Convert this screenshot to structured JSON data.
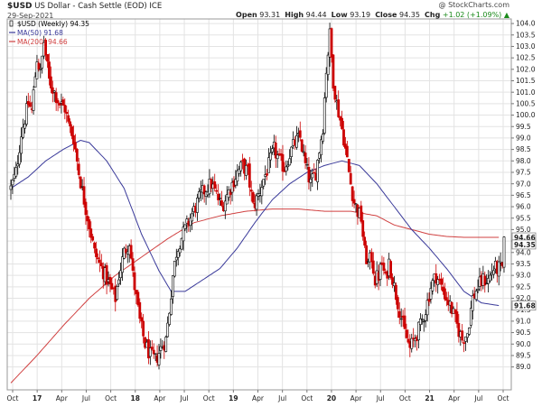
{
  "header": {
    "symbol": "$USD",
    "name": "US Dollar - Cash Settle (EOD) ICE",
    "date": "29-Sep-2021",
    "watermark": "@ StockCharts.com",
    "open_label": "Open",
    "open": "93.31",
    "high_label": "High",
    "high": "94.44",
    "low_label": "Low",
    "low": "93.19",
    "close_label": "Close",
    "close": "94.35",
    "chg_label": "Chg",
    "chg": "+1.02 (+1.09%)",
    "chg_arrow": "▲"
  },
  "colors": {
    "up": "#000000",
    "down": "#cc0000",
    "ma50": "#3a3a9a",
    "ma200": "#d04040",
    "grid": "#e3e3e3",
    "price_tag": "#000000"
  },
  "chart_data": {
    "type": "candlestick",
    "x_tick_labels": [
      "Oct",
      "17",
      "Apr",
      "Jul",
      "Oct",
      "18",
      "Apr",
      "Jul",
      "Oct",
      "19",
      "Apr",
      "Jul",
      "Oct",
      "20",
      "Apr",
      "Jul",
      "Oct",
      "21",
      "Apr",
      "Jul",
      "Oct"
    ],
    "ylim": [
      88.0,
      104.2
    ],
    "y_ticks": [
      "89.0",
      "89.5",
      "90.0",
      "90.5",
      "91.0",
      "91.5",
      "92.0",
      "92.5",
      "93.0",
      "93.5",
      "94.0",
      "94.5",
      "95.0",
      "95.5",
      "96.0",
      "96.5",
      "97.0",
      "97.5",
      "98.0",
      "98.5",
      "99.0",
      "99.5",
      "100.0",
      "100.5",
      "101.0",
      "101.5",
      "102.0",
      "102.5",
      "103.0",
      "103.5",
      "104.0"
    ],
    "legend": [
      {
        "label": "$USD (Weekly) 94.35",
        "key": "price"
      },
      {
        "label": "MA(50) 91.68",
        "key": "ma50"
      },
      {
        "label": "MA(200) 94.66",
        "key": "ma200"
      }
    ],
    "last_price_tag": "94.35",
    "ma50_tag": "91.68",
    "ma200_tag": "94.66",
    "price_path": [
      [
        0,
        96.8
      ],
      [
        3,
        97.5
      ],
      [
        6,
        99.2
      ],
      [
        10,
        100.5
      ],
      [
        12,
        100.2
      ],
      [
        15,
        102.5
      ],
      [
        17,
        101.8
      ],
      [
        19,
        103.2
      ],
      [
        22,
        101.5
      ],
      [
        25,
        101.0
      ],
      [
        28,
        100.5
      ],
      [
        31,
        100.3
      ],
      [
        33,
        99.6
      ],
      [
        36,
        99.0
      ],
      [
        39,
        97.5
      ],
      [
        42,
        96.3
      ],
      [
        45,
        95.2
      ],
      [
        48,
        94.0
      ],
      [
        51,
        93.5
      ],
      [
        54,
        93.0
      ],
      [
        57,
        92.5
      ],
      [
        60,
        92.0
      ],
      [
        62,
        93.0
      ],
      [
        65,
        94.0
      ],
      [
        68,
        94.5
      ],
      [
        70,
        93.0
      ],
      [
        72,
        92.0
      ],
      [
        74,
        91.0
      ],
      [
        77,
        90.0
      ],
      [
        80,
        89.5
      ],
      [
        83,
        89.3
      ],
      [
        86,
        89.8
      ],
      [
        89,
        90.2
      ],
      [
        91,
        91.5
      ],
      [
        93,
        93.0
      ],
      [
        95,
        94.0
      ],
      [
        97,
        94.5
      ],
      [
        100,
        95.0
      ],
      [
        103,
        95.5
      ],
      [
        106,
        96.0
      ],
      [
        109,
        96.5
      ],
      [
        112,
        96.8
      ],
      [
        115,
        97.0
      ],
      [
        118,
        96.5
      ],
      [
        121,
        96.0
      ],
      [
        124,
        96.5
      ],
      [
        127,
        97.0
      ],
      [
        130,
        97.5
      ],
      [
        133,
        97.8
      ],
      [
        136,
        97.5
      ],
      [
        139,
        96.0
      ],
      [
        142,
        96.5
      ],
      [
        145,
        97.2
      ],
      [
        148,
        97.8
      ],
      [
        151,
        98.5
      ],
      [
        154,
        98.0
      ],
      [
        157,
        97.7
      ],
      [
        160,
        98.3
      ],
      [
        163,
        98.8
      ],
      [
        166,
        99.0
      ],
      [
        169,
        97.8
      ],
      [
        172,
        97.0
      ],
      [
        175,
        97.5
      ],
      [
        177,
        98.5
      ],
      [
        179,
        99.5
      ],
      [
        181,
        102.0
      ],
      [
        183,
        103.5
      ],
      [
        185,
        101.5
      ],
      [
        187,
        100.5
      ],
      [
        189,
        99.8
      ],
      [
        191,
        99.0
      ],
      [
        193,
        98.0
      ],
      [
        195,
        97.0
      ],
      [
        197,
        96.2
      ],
      [
        199,
        95.8
      ],
      [
        201,
        95.5
      ],
      [
        203,
        94.0
      ],
      [
        205,
        93.5
      ],
      [
        207,
        93.8
      ],
      [
        209,
        92.8
      ],
      [
        211,
        93.0
      ],
      [
        213,
        93.5
      ],
      [
        215,
        92.8
      ],
      [
        217,
        93.6
      ],
      [
        220,
        92.5
      ],
      [
        223,
        91.5
      ],
      [
        226,
        90.5
      ],
      [
        229,
        89.8
      ],
      [
        232,
        90.3
      ],
      [
        235,
        90.8
      ],
      [
        238,
        91.5
      ],
      [
        241,
        92.5
      ],
      [
        244,
        93.0
      ],
      [
        247,
        92.5
      ],
      [
        250,
        92.0
      ],
      [
        253,
        91.5
      ],
      [
        256,
        90.8
      ],
      [
        259,
        90.2
      ],
      [
        262,
        90.5
      ],
      [
        265,
        92.0
      ],
      [
        268,
        92.5
      ],
      [
        271,
        92.8
      ],
      [
        274,
        92.8
      ],
      [
        277,
        93.3
      ],
      [
        280,
        93.3
      ],
      [
        282,
        93.3
      ],
      [
        283,
        94.35
      ]
    ],
    "ma50_path": [
      [
        0,
        96.8
      ],
      [
        10,
        97.3
      ],
      [
        20,
        98.0
      ],
      [
        30,
        98.5
      ],
      [
        40,
        98.9
      ],
      [
        45,
        98.8
      ],
      [
        55,
        98.0
      ],
      [
        65,
        96.8
      ],
      [
        75,
        94.8
      ],
      [
        85,
        93.2
      ],
      [
        92,
        92.3
      ],
      [
        100,
        92.3
      ],
      [
        110,
        92.8
      ],
      [
        120,
        93.3
      ],
      [
        130,
        94.2
      ],
      [
        140,
        95.3
      ],
      [
        150,
        96.3
      ],
      [
        160,
        97.0
      ],
      [
        170,
        97.5
      ],
      [
        180,
        97.8
      ],
      [
        190,
        98.0
      ],
      [
        200,
        97.8
      ],
      [
        210,
        97.0
      ],
      [
        220,
        96.0
      ],
      [
        230,
        95.0
      ],
      [
        240,
        94.2
      ],
      [
        250,
        93.3
      ],
      [
        260,
        92.3
      ],
      [
        270,
        91.8
      ],
      [
        280,
        91.68
      ]
    ],
    "ma200_path": [
      [
        0,
        88.3
      ],
      [
        15,
        89.5
      ],
      [
        30,
        90.8
      ],
      [
        45,
        92.0
      ],
      [
        60,
        93.0
      ],
      [
        75,
        93.8
      ],
      [
        90,
        94.6
      ],
      [
        105,
        95.3
      ],
      [
        120,
        95.6
      ],
      [
        135,
        95.8
      ],
      [
        150,
        95.9
      ],
      [
        165,
        95.9
      ],
      [
        180,
        95.8
      ],
      [
        195,
        95.8
      ],
      [
        210,
        95.6
      ],
      [
        220,
        95.2
      ],
      [
        230,
        95.0
      ],
      [
        240,
        94.8
      ],
      [
        250,
        94.7
      ],
      [
        260,
        94.66
      ],
      [
        280,
        94.66
      ]
    ]
  }
}
